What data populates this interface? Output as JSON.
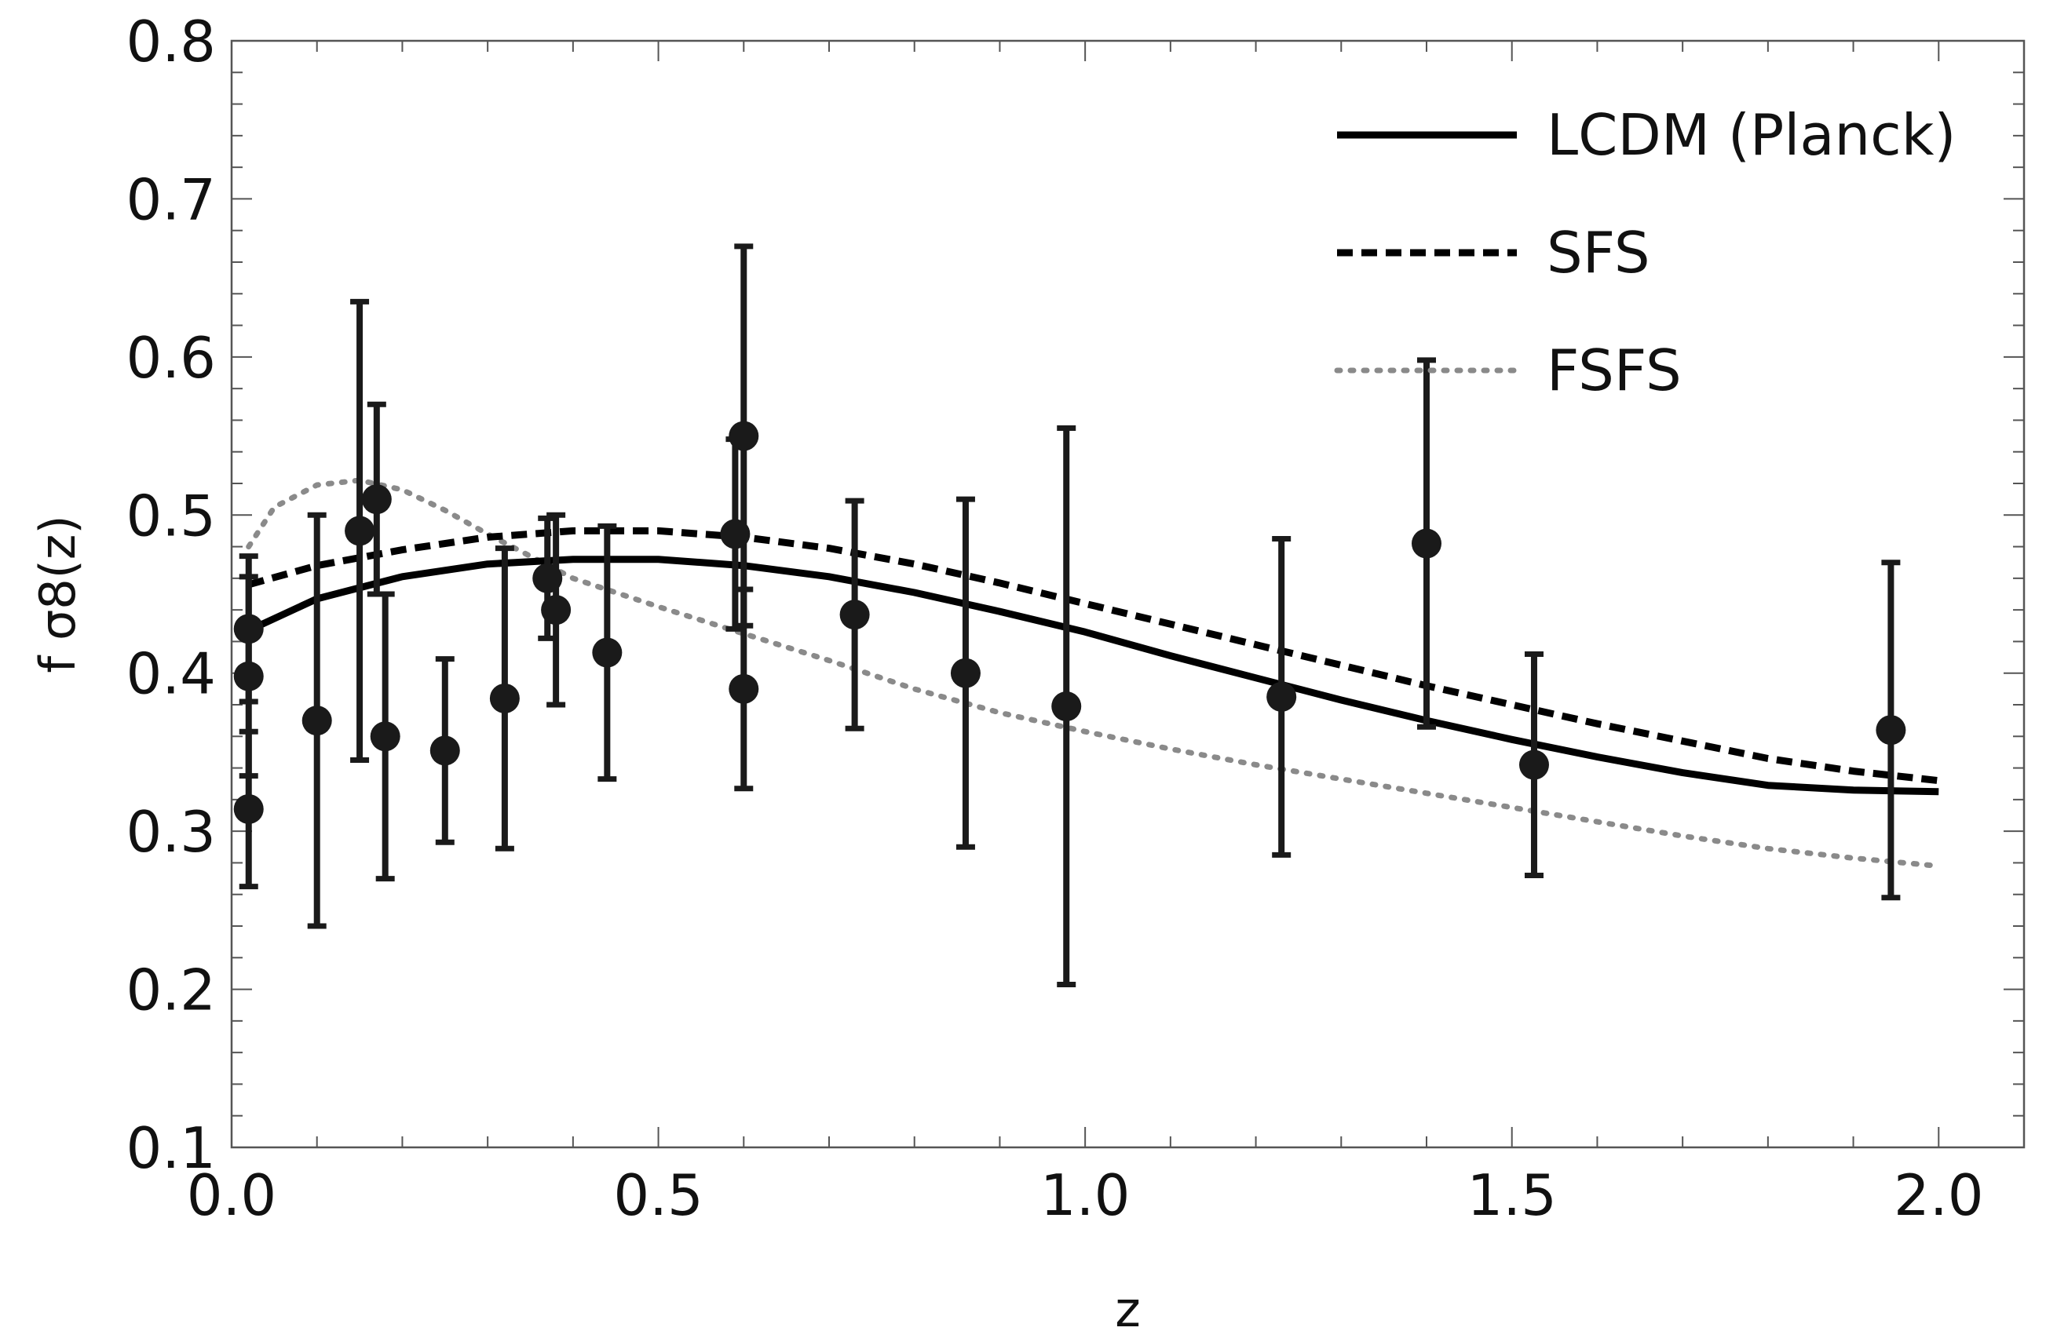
{
  "chart_data": {
    "type": "scatter",
    "title": "",
    "xlabel": "z",
    "ylabel": "f σ8(z)",
    "xlim": [
      0.0,
      2.1
    ],
    "ylim": [
      0.1,
      0.8
    ],
    "xticks": [
      "0.0",
      "0.5",
      "1.0",
      "1.5",
      "2.0"
    ],
    "yticks": [
      "0.1",
      "0.2",
      "0.3",
      "0.4",
      "0.5",
      "0.6",
      "0.7",
      "0.8"
    ],
    "legend_position": "top-right",
    "colors": {
      "data": "#1a1a1a",
      "lcdm": "#000000",
      "sfs": "#000000",
      "fsfs": "#8a8a8a",
      "frame": "#555555"
    },
    "series": [
      {
        "name": "LCDM (Planck)",
        "style": "solid",
        "x": [
          0.02,
          0.1,
          0.2,
          0.3,
          0.4,
          0.5,
          0.6,
          0.7,
          0.8,
          0.9,
          1.0,
          1.1,
          1.2,
          1.3,
          1.4,
          1.5,
          1.6,
          1.7,
          1.8,
          1.9,
          2.0
        ],
        "y": [
          0.427,
          0.447,
          0.461,
          0.469,
          0.472,
          0.472,
          0.468,
          0.461,
          0.451,
          0.439,
          0.426,
          0.411,
          0.397,
          0.383,
          0.37,
          0.358,
          0.347,
          0.337,
          0.329,
          0.326,
          0.325
        ]
      },
      {
        "name": "SFS",
        "style": "dashed",
        "x": [
          0.02,
          0.1,
          0.2,
          0.3,
          0.4,
          0.5,
          0.6,
          0.7,
          0.8,
          0.9,
          1.0,
          1.1,
          1.2,
          1.3,
          1.4,
          1.5,
          1.6,
          1.7,
          1.8,
          1.9,
          2.0
        ],
        "y": [
          0.456,
          0.468,
          0.478,
          0.486,
          0.49,
          0.49,
          0.486,
          0.479,
          0.469,
          0.457,
          0.444,
          0.431,
          0.418,
          0.405,
          0.392,
          0.38,
          0.368,
          0.357,
          0.346,
          0.338,
          0.332
        ]
      },
      {
        "name": "FSFS",
        "style": "dotted",
        "x": [
          0.02,
          0.05,
          0.1,
          0.15,
          0.2,
          0.25,
          0.3,
          0.4,
          0.5,
          0.6,
          0.7,
          0.8,
          0.9,
          1.0,
          1.1,
          1.2,
          1.3,
          1.4,
          1.5,
          1.6,
          1.7,
          1.8,
          1.9,
          2.0
        ],
        "y": [
          0.48,
          0.505,
          0.519,
          0.522,
          0.516,
          0.503,
          0.488,
          0.46,
          0.442,
          0.425,
          0.408,
          0.39,
          0.375,
          0.363,
          0.352,
          0.342,
          0.333,
          0.324,
          0.315,
          0.306,
          0.297,
          0.289,
          0.283,
          0.278
        ]
      }
    ],
    "points": [
      {
        "x": 0.02,
        "y": 0.428,
        "lo": 0.382,
        "hi": 0.474
      },
      {
        "x": 0.02,
        "y": 0.398,
        "lo": 0.335,
        "hi": 0.461
      },
      {
        "x": 0.02,
        "y": 0.314,
        "lo": 0.265,
        "hi": 0.363
      },
      {
        "x": 0.1,
        "y": 0.37,
        "lo": 0.24,
        "hi": 0.5
      },
      {
        "x": 0.15,
        "y": 0.49,
        "lo": 0.345,
        "hi": 0.635
      },
      {
        "x": 0.17,
        "y": 0.51,
        "lo": 0.45,
        "hi": 0.57
      },
      {
        "x": 0.18,
        "y": 0.36,
        "lo": 0.27,
        "hi": 0.45
      },
      {
        "x": 0.25,
        "y": 0.351,
        "lo": 0.293,
        "hi": 0.409
      },
      {
        "x": 0.32,
        "y": 0.384,
        "lo": 0.289,
        "hi": 0.479
      },
      {
        "x": 0.37,
        "y": 0.46,
        "lo": 0.422,
        "hi": 0.498
      },
      {
        "x": 0.38,
        "y": 0.44,
        "lo": 0.38,
        "hi": 0.5
      },
      {
        "x": 0.44,
        "y": 0.413,
        "lo": 0.333,
        "hi": 0.493
      },
      {
        "x": 0.59,
        "y": 0.488,
        "lo": 0.428,
        "hi": 0.548
      },
      {
        "x": 0.6,
        "y": 0.55,
        "lo": 0.43,
        "hi": 0.67
      },
      {
        "x": 0.6,
        "y": 0.39,
        "lo": 0.327,
        "hi": 0.453
      },
      {
        "x": 0.73,
        "y": 0.437,
        "lo": 0.365,
        "hi": 0.509
      },
      {
        "x": 0.86,
        "y": 0.4,
        "lo": 0.29,
        "hi": 0.51
      },
      {
        "x": 0.978,
        "y": 0.379,
        "lo": 0.203,
        "hi": 0.555
      },
      {
        "x": 1.23,
        "y": 0.385,
        "lo": 0.285,
        "hi": 0.485
      },
      {
        "x": 1.4,
        "y": 0.482,
        "lo": 0.366,
        "hi": 0.598
      },
      {
        "x": 1.526,
        "y": 0.342,
        "lo": 0.272,
        "hi": 0.412
      },
      {
        "x": 1.944,
        "y": 0.364,
        "lo": 0.258,
        "hi": 0.47
      }
    ]
  }
}
